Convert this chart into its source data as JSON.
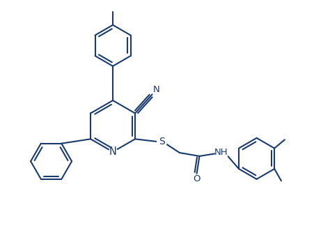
{
  "bg_color": "#ffffff",
  "line_color": "#1a3a6b",
  "line_width": 1.5,
  "font_size": 9.5,
  "figsize": [
    4.52,
    3.47
  ],
  "dpi": 100,
  "xlim": [
    0,
    9.0
  ],
  "ylim": [
    0,
    7.0
  ]
}
